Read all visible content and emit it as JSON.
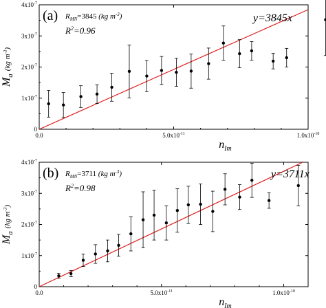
{
  "colors": {
    "fit_line": "#e02020",
    "points": "#000000",
    "axes": "#000000"
  },
  "chart_data": [
    {
      "type": "scatter",
      "panel_label": "(a)",
      "xlabel": "n",
      "xlabel_sub": "Im",
      "ylabel": "M",
      "ylabel_sub": "a",
      "ylabel_unit": "(kg m",
      "ylabel_unit_exp": "-3",
      "ylabel_unit_close": ")",
      "xlim": [
        0,
        1e-10
      ],
      "ylim": [
        0,
        4e-07
      ],
      "x_ticks": [
        0,
        5e-11,
        1e-10
      ],
      "x_tick_labels": [
        "0.0",
        "5.0x10",
        "1.0x10"
      ],
      "x_tick_exps": [
        "",
        "-11",
        "-10"
      ],
      "y_ticks": [
        0,
        1e-07,
        2e-07,
        3e-07,
        4e-07
      ],
      "y_tick_labels": [
        "0",
        "1x10",
        "2x10",
        "3x10",
        "4x10"
      ],
      "y_tick_exps": [
        "",
        "-7",
        "-7",
        "-7",
        "-7"
      ],
      "annotation_rmn_prefix": "R",
      "annotation_rmn_sub": "MN",
      "annotation_rmn_value": "=3845",
      "annotation_rmn_unit": "(kg m",
      "annotation_rmn_unit_exp": "-3",
      "annotation_rmn_unit_close": ")",
      "annotation_r2_prefix": "R",
      "annotation_r2_exp": "2",
      "annotation_r2_value": "=0.96",
      "fit_label": "y=3845x",
      "fit_slope": 3845,
      "points": [
        {
          "x": 3.5e-12,
          "y": 8.2e-08,
          "err": 4.3e-08
        },
        {
          "x": 9e-12,
          "y": 7.8e-08,
          "err": 4e-08
        },
        {
          "x": 1.55e-11,
          "y": 1.05e-07,
          "err": 3.5e-08
        },
        {
          "x": 2.15e-11,
          "y": 1.13e-07,
          "err": 3e-08
        },
        {
          "x": 2.7e-11,
          "y": 1.35e-07,
          "err": 4.5e-08
        },
        {
          "x": 3.35e-11,
          "y": 1.86e-07,
          "err": 8.5e-08
        },
        {
          "x": 4e-11,
          "y": 1.71e-07,
          "err": 5e-08
        },
        {
          "x": 4.55e-11,
          "y": 1.89e-07,
          "err": 4.5e-08
        },
        {
          "x": 5.1e-11,
          "y": 1.83e-07,
          "err": 4.5e-08
        },
        {
          "x": 5.65e-11,
          "y": 1.87e-07,
          "err": 5.5e-08
        },
        {
          "x": 6.3e-11,
          "y": 2.11e-07,
          "err": 5e-08
        },
        {
          "x": 6.85e-11,
          "y": 2.77e-07,
          "err": 5.5e-08
        },
        {
          "x": 7.45e-11,
          "y": 2.43e-07,
          "err": 4.5e-08
        },
        {
          "x": 7.9e-11,
          "y": 2.52e-07,
          "err": 3e-08
        },
        {
          "x": 8.7e-11,
          "y": 2.19e-07,
          "err": 2.5e-08
        },
        {
          "x": 9.2e-11,
          "y": 2.3e-07,
          "err": 3e-08
        },
        {
          "x": 1.065e-10,
          "y": 3.52e-07,
          "err": 1.15e-07
        }
      ]
    },
    {
      "type": "scatter",
      "panel_label": "(b)",
      "xlabel": "n",
      "xlabel_sub": "Im",
      "ylabel": "M",
      "ylabel_sub": "a",
      "ylabel_unit": "(kg m",
      "ylabel_unit_exp": "-3",
      "ylabel_unit_close": ")",
      "xlim": [
        0,
        1.1e-10
      ],
      "ylim": [
        0,
        4e-07
      ],
      "x_ticks": [
        0,
        5e-11,
        1e-10
      ],
      "x_tick_labels": [
        "0.0",
        "5.0x10",
        "1.0x10"
      ],
      "x_tick_exps": [
        "",
        "-11",
        "-10"
      ],
      "y_ticks": [
        0,
        1e-07,
        2e-07,
        3e-07,
        4e-07
      ],
      "y_tick_labels": [
        "0",
        "1x10",
        "2x10",
        "3x10",
        "4x10"
      ],
      "y_tick_exps": [
        "",
        "-7",
        "-7",
        "-7",
        "-7"
      ],
      "annotation_rmn_prefix": "R",
      "annotation_rmn_sub": "MN",
      "annotation_rmn_value": "=3711",
      "annotation_rmn_unit": "(kg m",
      "annotation_rmn_unit_exp": "-3",
      "annotation_rmn_unit_close": ")",
      "annotation_r2_prefix": "R",
      "annotation_r2_exp": "2",
      "annotation_r2_value": "=0.98",
      "fit_label": "y=3711x",
      "fit_slope": 3711,
      "points": [
        {
          "x": 8e-12,
          "y": 3.5e-08,
          "err": 8e-09
        },
        {
          "x": 1.3e-11,
          "y": 4.2e-08,
          "err": 1e-08
        },
        {
          "x": 1.8e-11,
          "y": 8.5e-08,
          "err": 2e-08
        },
        {
          "x": 2.3e-11,
          "y": 1.05e-07,
          "err": 3e-08
        },
        {
          "x": 2.8e-11,
          "y": 1.15e-07,
          "err": 3.5e-08
        },
        {
          "x": 3.25e-11,
          "y": 1.33e-07,
          "err": 3.5e-08
        },
        {
          "x": 3.75e-11,
          "y": 1.7e-07,
          "err": 5.5e-08
        },
        {
          "x": 4.25e-11,
          "y": 2.15e-07,
          "err": 9e-08
        },
        {
          "x": 4.7e-11,
          "y": 2.3e-07,
          "err": 8e-08
        },
        {
          "x": 5.2e-11,
          "y": 2.05e-07,
          "err": 5.5e-08
        },
        {
          "x": 5.65e-11,
          "y": 2.45e-07,
          "err": 7e-08
        },
        {
          "x": 6.1e-11,
          "y": 2.63e-07,
          "err": 6e-08
        },
        {
          "x": 6.6e-11,
          "y": 2.65e-07,
          "err": 6.5e-08
        },
        {
          "x": 7.1e-11,
          "y": 2.42e-07,
          "err": 6.5e-08
        },
        {
          "x": 7.6e-11,
          "y": 3.13e-07,
          "err": 5e-08
        },
        {
          "x": 8.2e-11,
          "y": 2.88e-07,
          "err": 4e-08
        },
        {
          "x": 8.7e-11,
          "y": 3.42e-07,
          "err": 5.5e-08
        },
        {
          "x": 9.4e-11,
          "y": 2.77e-07,
          "err": 2.5e-08
        },
        {
          "x": 1.06e-10,
          "y": 3.25e-07,
          "err": 6.5e-08
        }
      ]
    }
  ]
}
